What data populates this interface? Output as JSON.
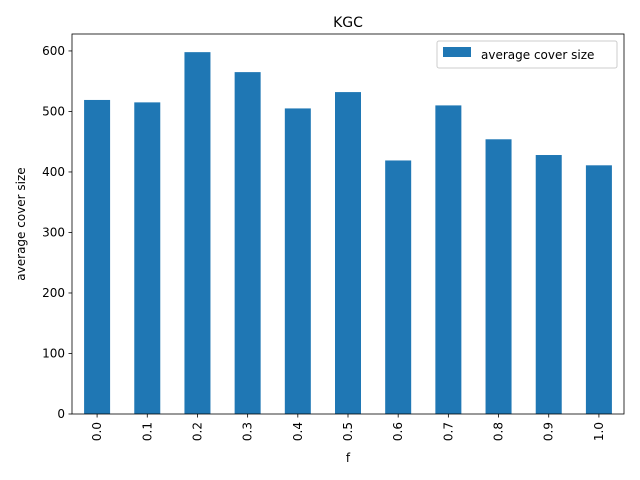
{
  "chart_data": {
    "type": "bar",
    "title": "KGC",
    "xlabel": "f",
    "ylabel": "average cover size",
    "categories": [
      "0.0",
      "0.1",
      "0.2",
      "0.3",
      "0.4",
      "0.5",
      "0.6",
      "0.7",
      "0.8",
      "0.9",
      "1.0"
    ],
    "series": [
      {
        "name": "average cover size",
        "values": [
          519,
          515,
          598,
          565,
          505,
          532,
          419,
          510,
          454,
          428,
          411
        ],
        "color": "#1f77b4"
      }
    ],
    "ylim": [
      0,
      628
    ],
    "yticks": [
      0,
      100,
      200,
      300,
      400,
      500,
      600
    ],
    "grid": false,
    "legend_position": "top-right"
  }
}
